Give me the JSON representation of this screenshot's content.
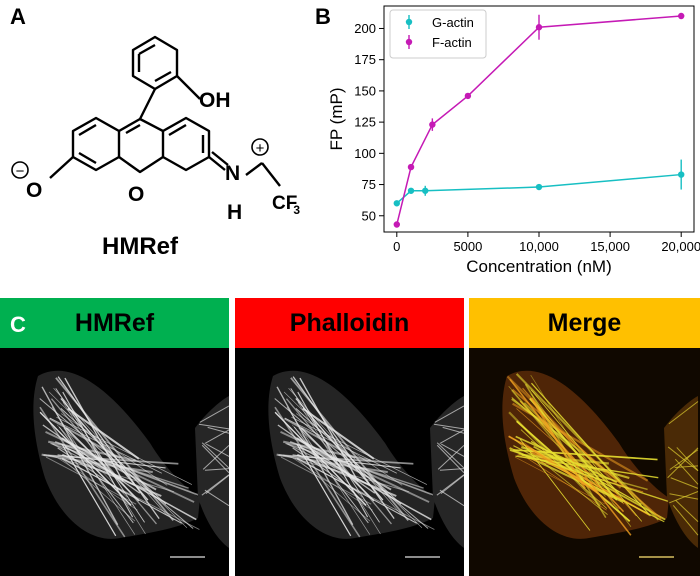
{
  "panel_a": {
    "letter": "A",
    "compound_name": "HMRef",
    "atoms": {
      "oh": "OH",
      "o_minus": "O",
      "ring_o": "O",
      "n_plus": "N",
      "h": "H",
      "cf3_main": "CF",
      "cf3_sub": "3",
      "minus": "−",
      "plus": "+"
    }
  },
  "panel_b": {
    "letter": "B"
  },
  "chart_data": {
    "type": "line",
    "title": "",
    "xlabel": "Concentration (nM)",
    "ylabel": "FP (mP)",
    "xlim": [
      -900,
      20900
    ],
    "ylim": [
      37,
      218
    ],
    "x_ticks": [
      0,
      5000,
      10000,
      15000,
      20000
    ],
    "x_tick_labels": [
      "0",
      "5000",
      "10,000",
      "15,000",
      "20,000"
    ],
    "y_ticks": [
      50,
      75,
      100,
      125,
      150,
      175,
      200
    ],
    "y_tick_labels": [
      "50",
      "75",
      "100",
      "125",
      "150",
      "175",
      "200"
    ],
    "legend_position": "top-left",
    "series": [
      {
        "name": "G-actin",
        "color": "#17bfc3",
        "x": [
          0,
          1000,
          2000,
          10000,
          20000
        ],
        "y": [
          60,
          70,
          70,
          73,
          83
        ],
        "err": [
          1.5,
          2,
          4,
          1.5,
          12
        ]
      },
      {
        "name": "F-actin",
        "color": "#c51ab5",
        "x": [
          0,
          1000,
          2500,
          5000,
          10000,
          20000
        ],
        "y": [
          43,
          89,
          123,
          146,
          201,
          210
        ],
        "err": [
          1.5,
          2,
          5,
          1.5,
          10,
          2
        ]
      }
    ]
  },
  "panel_c": {
    "letter": "C",
    "images": [
      {
        "label": "HMRef",
        "header_color": "#00b050",
        "stain": "gray"
      },
      {
        "label": "Phalloidin",
        "header_color": "#ff0000",
        "stain": "gray"
      },
      {
        "label": "Merge",
        "header_color": "#ffc000",
        "stain": "merge"
      }
    ]
  }
}
